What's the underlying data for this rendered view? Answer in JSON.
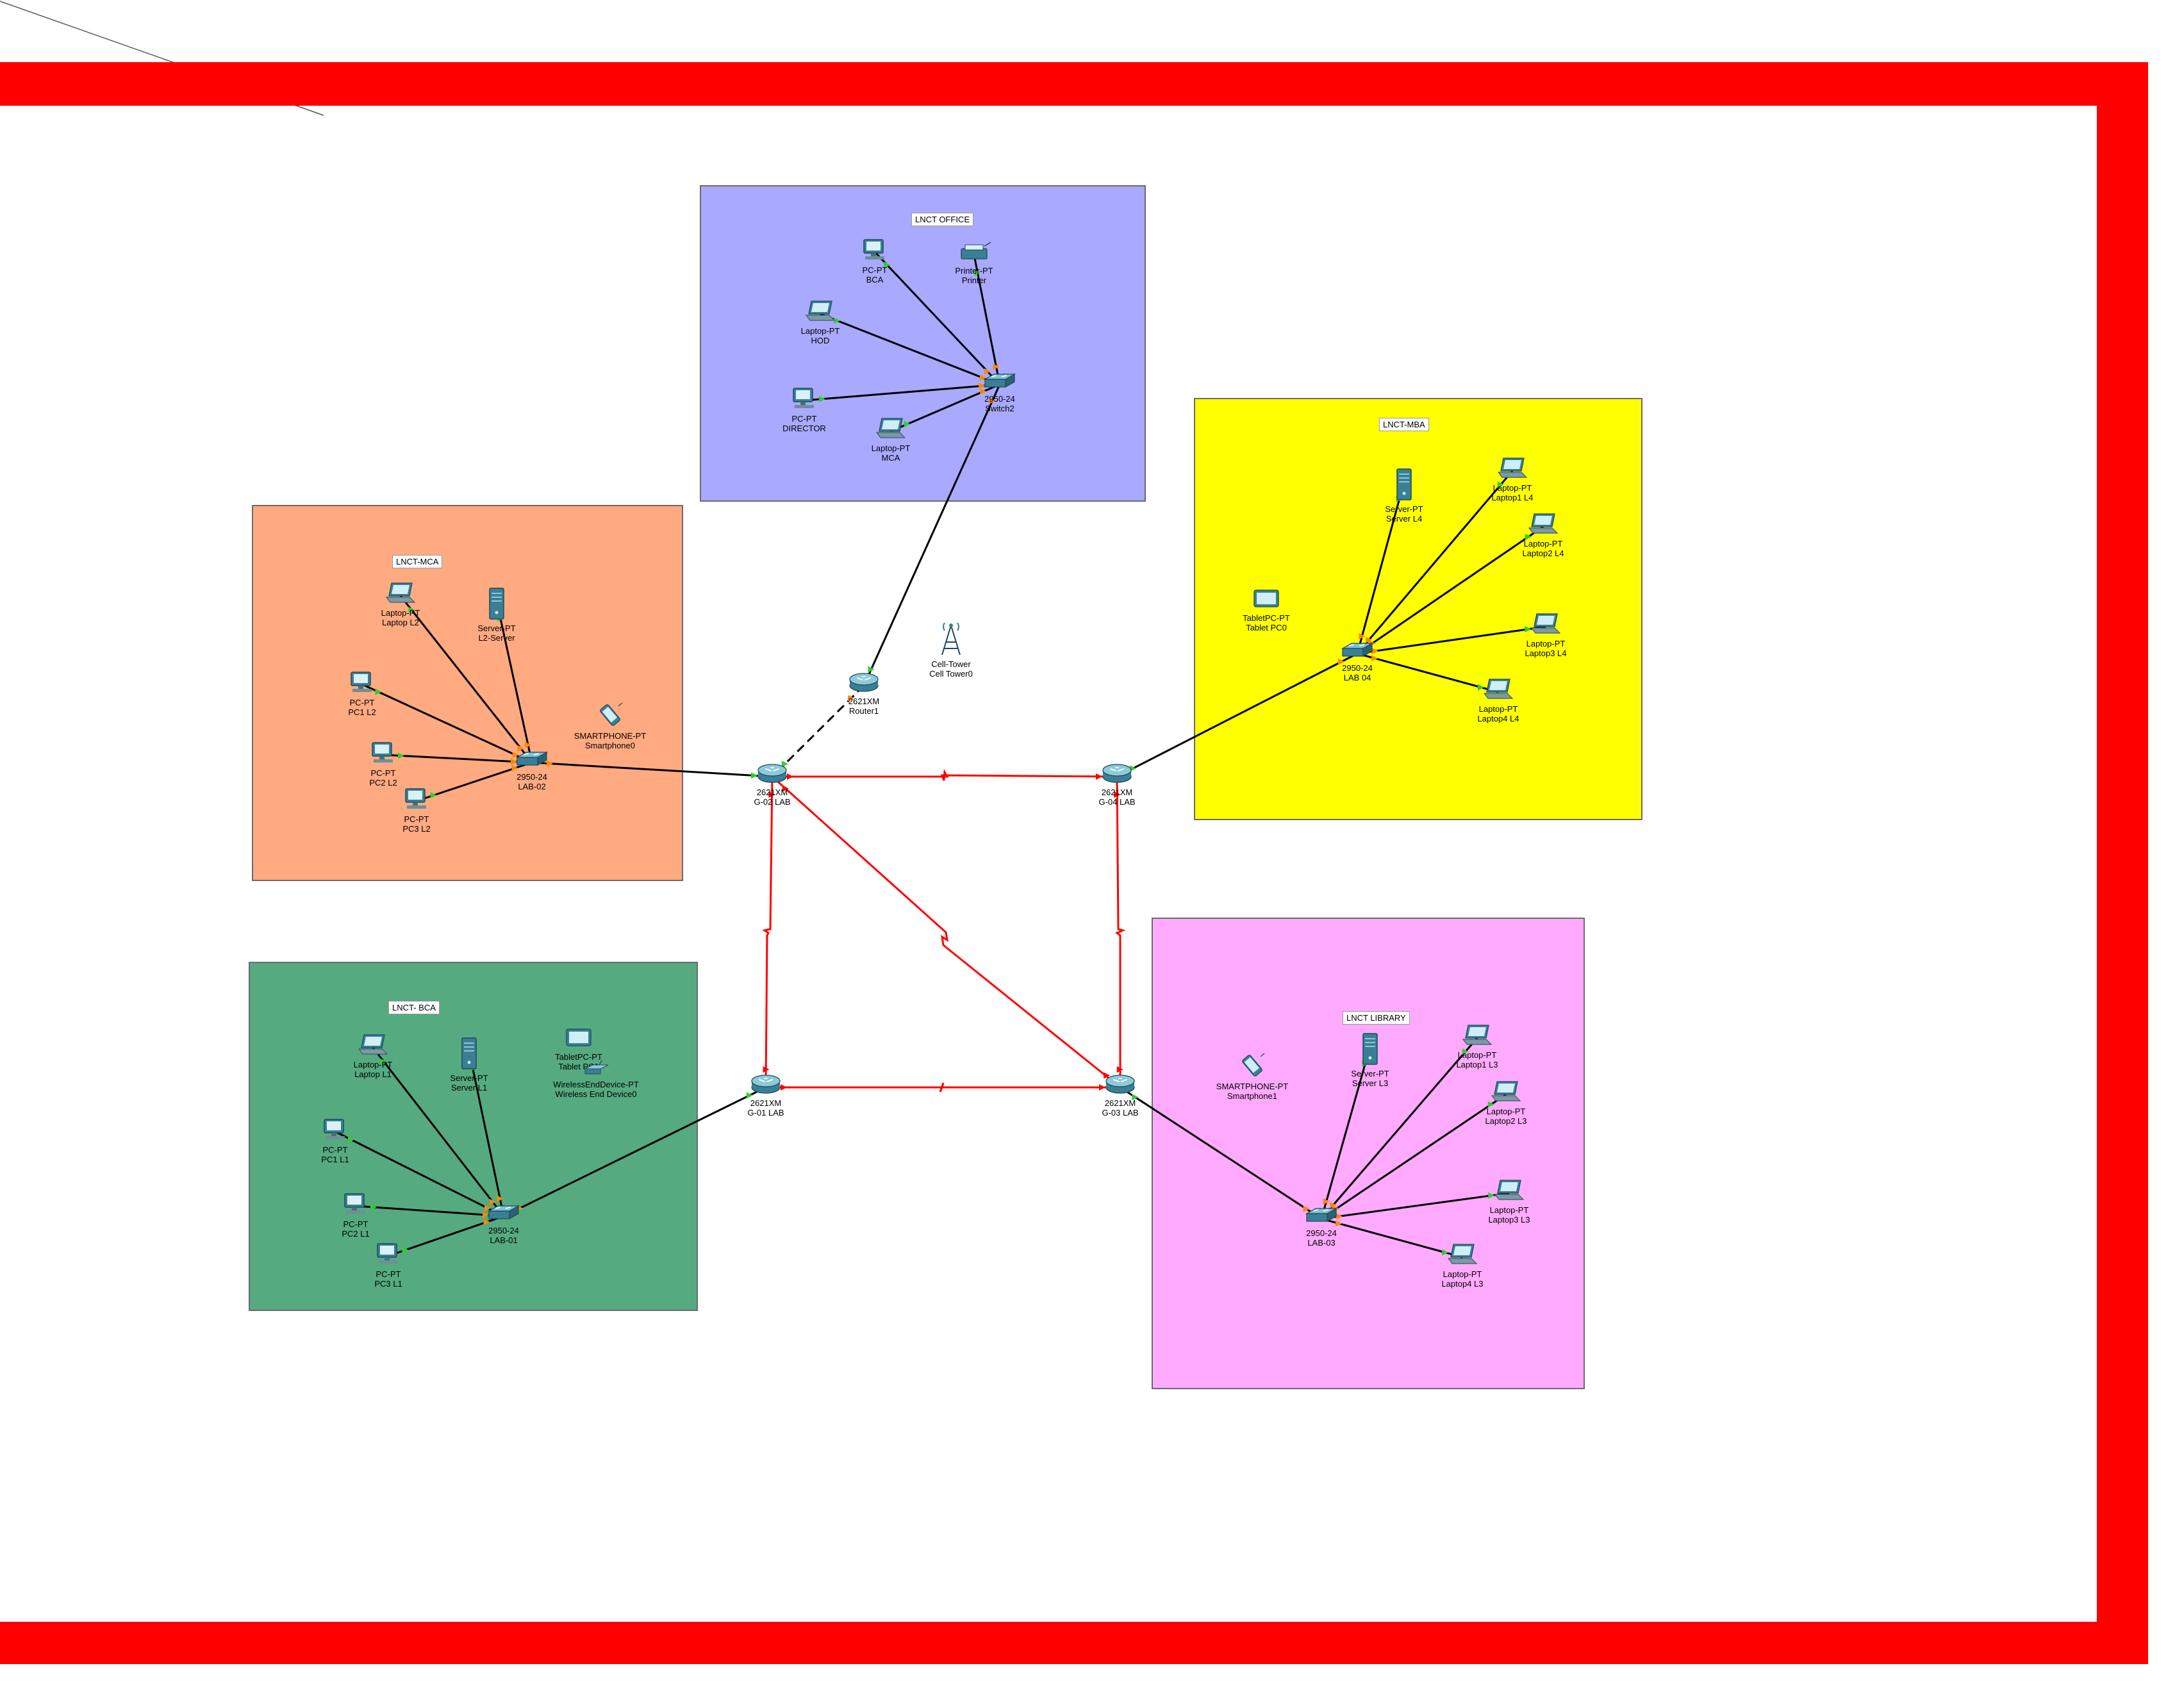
{
  "colors": {
    "frame": "#ff0000",
    "office": "#a9a9ff",
    "mca": "#ffaa80",
    "mba": "#ffff00",
    "bca": "#56aa80",
    "library": "#ffaaff",
    "serial_link": "#ff0000",
    "ethernet_link": "#000000",
    "port_up": "#33cc33",
    "port_orange": "#ff8800"
  },
  "zones": [
    {
      "id": "office",
      "title": "LNCT OFFICE"
    },
    {
      "id": "mba",
      "title": "LNCT-MBA"
    },
    {
      "id": "mca",
      "title": "LNCT-MCA"
    },
    {
      "id": "bca",
      "title": "LNCT- BCA"
    },
    {
      "id": "library",
      "title": "LNCT LIBRARY"
    }
  ],
  "devices": {
    "pc_bca": {
      "type": "PC-PT",
      "name": "BCA",
      "icon": "pc-icon"
    },
    "printer": {
      "type": "Printer-PT",
      "name": "Printer",
      "icon": "printer-icon"
    },
    "laptop_hod": {
      "type": "Laptop-PT",
      "name": "HOD",
      "icon": "laptop-icon"
    },
    "pc_director": {
      "type": "PC-PT",
      "name": "DIRECTOR",
      "icon": "pc-icon"
    },
    "laptop_mca": {
      "type": "Laptop-PT",
      "name": "MCA",
      "icon": "laptop-icon"
    },
    "switch2": {
      "type": "2950-24",
      "name": "Switch2",
      "icon": "switch-icon"
    },
    "router1": {
      "type": "2621XM",
      "name": "Router1",
      "icon": "router-icon"
    },
    "cell_tower": {
      "type": "Cell-Tower",
      "name": "Cell Tower0",
      "icon": "cell-tower-icon"
    },
    "laptop_l2": {
      "type": "Laptop-PT",
      "name": "Laptop L2",
      "icon": "laptop-icon"
    },
    "server_l2": {
      "type": "Server-PT",
      "name": "L2-Server",
      "icon": "server-icon"
    },
    "pc1_l2": {
      "type": "PC-PT",
      "name": "PC1 L2",
      "icon": "pc-icon"
    },
    "pc2_l2": {
      "type": "PC-PT",
      "name": "PC2 L2",
      "icon": "pc-icon"
    },
    "pc3_l2": {
      "type": "PC-PT",
      "name": "PC3 L2",
      "icon": "pc-icon"
    },
    "smartphone0": {
      "type": "SMARTPHONE-PT",
      "name": "Smartphone0",
      "icon": "smartphone-icon"
    },
    "sw_lab02": {
      "type": "2950-24",
      "name": "LAB-02",
      "icon": "switch-icon"
    },
    "r_g02": {
      "type": "2621XM",
      "name": "G-02 LAB",
      "icon": "router-icon"
    },
    "r_g04": {
      "type": "2621XM",
      "name": "G-04 LAB",
      "icon": "router-icon"
    },
    "server_l4": {
      "type": "Server-PT",
      "name": "Server L4",
      "icon": "server-icon"
    },
    "laptop1_l4": {
      "type": "Laptop-PT",
      "name": "Laptop1 L4",
      "icon": "laptop-icon"
    },
    "laptop2_l4": {
      "type": "Laptop-PT",
      "name": "Laptop2 L4",
      "icon": "laptop-icon"
    },
    "laptop3_l4": {
      "type": "Laptop-PT",
      "name": "Laptop3 L4",
      "icon": "laptop-icon"
    },
    "laptop4_l4": {
      "type": "Laptop-PT",
      "name": "Laptop4 L4",
      "icon": "laptop-icon"
    },
    "tablet_pc0": {
      "type": "TabletPC-PT",
      "name": "Tablet PC0",
      "icon": "tablet-icon"
    },
    "sw_lab04": {
      "type": "2950-24",
      "name": "LAB 04",
      "icon": "switch-icon"
    },
    "laptop_l1": {
      "type": "Laptop-PT",
      "name": "Laptop L1",
      "icon": "laptop-icon"
    },
    "server_l1": {
      "type": "Server-PT",
      "name": "Server L1",
      "icon": "server-icon"
    },
    "tablet_pc1": {
      "type": "TabletPC-PT",
      "name": "Tablet PC1",
      "icon": "tablet-icon"
    },
    "wireless_ed": {
      "type": "WirelessEndDevice-PT",
      "name": "Wireless End Device0",
      "icon": "wireless-end-device-icon"
    },
    "pc1_l1": {
      "type": "PC-PT",
      "name": "PC1 L1",
      "icon": "pc-icon"
    },
    "pc2_l1": {
      "type": "PC-PT",
      "name": "PC2 L1",
      "icon": "pc-icon"
    },
    "pc3_l1": {
      "type": "PC-PT",
      "name": "PC3 L1",
      "icon": "pc-icon"
    },
    "sw_lab01": {
      "type": "2950-24",
      "name": "LAB-01",
      "icon": "switch-icon"
    },
    "r_g01": {
      "type": "2621XM",
      "name": "G-01 LAB",
      "icon": "router-icon"
    },
    "r_g03": {
      "type": "2621XM",
      "name": "G-03 LAB",
      "icon": "router-icon"
    },
    "smartphone1": {
      "type": "SMARTPHONE-PT",
      "name": "Smartphone1",
      "icon": "smartphone-icon"
    },
    "server_l3": {
      "type": "Server-PT",
      "name": "Server L3",
      "icon": "server-icon"
    },
    "laptop1_l3": {
      "type": "Laptop-PT",
      "name": "Laptop1 L3",
      "icon": "laptop-icon"
    },
    "laptop2_l3": {
      "type": "Laptop-PT",
      "name": "Laptop2 L3",
      "icon": "laptop-icon"
    },
    "laptop3_l3": {
      "type": "Laptop-PT",
      "name": "Laptop3 L3",
      "icon": "laptop-icon"
    },
    "laptop4_l3": {
      "type": "Laptop-PT",
      "name": "Laptop4 L3",
      "icon": "laptop-icon"
    },
    "sw_lab03": {
      "type": "2950-24",
      "name": "LAB-03",
      "icon": "switch-icon"
    }
  },
  "links": [
    {
      "from": "switch2",
      "to": "pc_bca",
      "kind": "ethernet"
    },
    {
      "from": "switch2",
      "to": "printer",
      "kind": "ethernet"
    },
    {
      "from": "switch2",
      "to": "laptop_hod",
      "kind": "ethernet"
    },
    {
      "from": "switch2",
      "to": "pc_director",
      "kind": "ethernet"
    },
    {
      "from": "switch2",
      "to": "laptop_mca",
      "kind": "ethernet"
    },
    {
      "from": "switch2",
      "to": "router1",
      "kind": "ethernet"
    },
    {
      "from": "router1",
      "to": "r_g02",
      "kind": "dashed"
    },
    {
      "from": "sw_lab02",
      "to": "laptop_l2",
      "kind": "ethernet"
    },
    {
      "from": "sw_lab02",
      "to": "server_l2",
      "kind": "ethernet"
    },
    {
      "from": "sw_lab02",
      "to": "pc1_l2",
      "kind": "ethernet"
    },
    {
      "from": "sw_lab02",
      "to": "pc2_l2",
      "kind": "ethernet"
    },
    {
      "from": "sw_lab02",
      "to": "pc3_l2",
      "kind": "ethernet"
    },
    {
      "from": "sw_lab02",
      "to": "r_g02",
      "kind": "ethernet"
    },
    {
      "from": "sw_lab04",
      "to": "server_l4",
      "kind": "ethernet"
    },
    {
      "from": "sw_lab04",
      "to": "laptop1_l4",
      "kind": "ethernet"
    },
    {
      "from": "sw_lab04",
      "to": "laptop2_l4",
      "kind": "ethernet"
    },
    {
      "from": "sw_lab04",
      "to": "laptop3_l4",
      "kind": "ethernet"
    },
    {
      "from": "sw_lab04",
      "to": "laptop4_l4",
      "kind": "ethernet"
    },
    {
      "from": "sw_lab04",
      "to": "r_g04",
      "kind": "ethernet"
    },
    {
      "from": "sw_lab01",
      "to": "laptop_l1",
      "kind": "ethernet"
    },
    {
      "from": "sw_lab01",
      "to": "server_l1",
      "kind": "ethernet"
    },
    {
      "from": "sw_lab01",
      "to": "pc1_l1",
      "kind": "ethernet"
    },
    {
      "from": "sw_lab01",
      "to": "pc2_l1",
      "kind": "ethernet"
    },
    {
      "from": "sw_lab01",
      "to": "pc3_l1",
      "kind": "ethernet"
    },
    {
      "from": "sw_lab01",
      "to": "r_g01",
      "kind": "ethernet"
    },
    {
      "from": "sw_lab03",
      "to": "server_l3",
      "kind": "ethernet"
    },
    {
      "from": "sw_lab03",
      "to": "laptop1_l3",
      "kind": "ethernet"
    },
    {
      "from": "sw_lab03",
      "to": "laptop2_l3",
      "kind": "ethernet"
    },
    {
      "from": "sw_lab03",
      "to": "laptop3_l3",
      "kind": "ethernet"
    },
    {
      "from": "sw_lab03",
      "to": "laptop4_l3",
      "kind": "ethernet"
    },
    {
      "from": "sw_lab03",
      "to": "r_g03",
      "kind": "ethernet"
    },
    {
      "from": "r_g02",
      "to": "r_g04",
      "kind": "serial"
    },
    {
      "from": "r_g02",
      "to": "r_g01",
      "kind": "serial"
    },
    {
      "from": "r_g02",
      "to": "r_g03",
      "kind": "serial"
    },
    {
      "from": "r_g04",
      "to": "r_g03",
      "kind": "serial"
    },
    {
      "from": "r_g01",
      "to": "r_g03",
      "kind": "serial"
    }
  ]
}
